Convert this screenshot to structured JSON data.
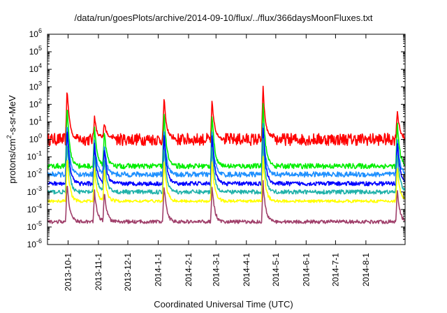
{
  "chart_data": {
    "type": "line",
    "title": "/data/run/goesPlots/archive/2014-09-10/flux/../flux/366daysMoonFluxes.txt",
    "xlabel": "Coordinated Universal Time (UTC)",
    "ylabel_parts": [
      "protons/cm",
      "2",
      "-s-sr-MeV"
    ],
    "yscale": "log",
    "ylim": [
      1e-06,
      1000000.0
    ],
    "xlim": [
      "2013-09-10",
      "2014-09-10"
    ],
    "x_ticks": [
      "2013-10-1",
      "2013-11-1",
      "2013-12-1",
      "2014-1-1",
      "2014-2-1",
      "2014-3-1",
      "2014-4-1",
      "2014-5-1",
      "2014-6-1",
      "2014-7-1",
      "2014-8-1"
    ],
    "y_ticks": [
      {
        "base": "10",
        "exp": "-6"
      },
      {
        "base": "10",
        "exp": "-5"
      },
      {
        "base": "10",
        "exp": "-4"
      },
      {
        "base": "10",
        "exp": "-3"
      },
      {
        "base": "10",
        "exp": "-2"
      },
      {
        "base": "10",
        "exp": "-1"
      },
      {
        "base": "10",
        "exp": "0"
      },
      {
        "base": "10",
        "exp": "1"
      },
      {
        "base": "10",
        "exp": "2"
      },
      {
        "base": "10",
        "exp": "3"
      },
      {
        "base": "10",
        "exp": "4"
      },
      {
        "base": "10",
        "exp": "5"
      },
      {
        "base": "10",
        "exp": "6"
      }
    ],
    "grid": false,
    "events": [
      {
        "date": "2013-09-30",
        "peak": 1000
      },
      {
        "date": "2013-10-28",
        "peak": 20
      },
      {
        "date": "2013-11-07",
        "peak": 10
      },
      {
        "date": "2014-01-07",
        "peak": 250
      },
      {
        "date": "2014-02-25",
        "peak": 200
      },
      {
        "date": "2014-04-18",
        "peak": 1000
      },
      {
        "date": "2014-09-02",
        "peak": 50
      }
    ],
    "series": [
      {
        "color": "#ff0000",
        "baseline": 1.0,
        "noise_decades": 0.35,
        "event_scale": 1.0
      },
      {
        "color": "#00ee00",
        "baseline": 0.03,
        "noise_decades": 0.15,
        "event_scale": 0.8
      },
      {
        "color": "#1e90ff",
        "baseline": 0.01,
        "noise_decades": 0.15,
        "event_scale": 0.6
      },
      {
        "color": "#0000ff",
        "baseline": 0.003,
        "noise_decades": 0.12,
        "event_scale": 0.6
      },
      {
        "color": "#20b2aa",
        "baseline": 0.001,
        "noise_decades": 0.12,
        "event_scale": 0.5
      },
      {
        "color": "#ffff00",
        "baseline": 0.0003,
        "noise_decades": 0.08,
        "event_scale": 0.4
      },
      {
        "color": "#a0406b",
        "baseline": 2e-05,
        "noise_decades": 0.1,
        "event_scale": 0.3
      }
    ]
  }
}
